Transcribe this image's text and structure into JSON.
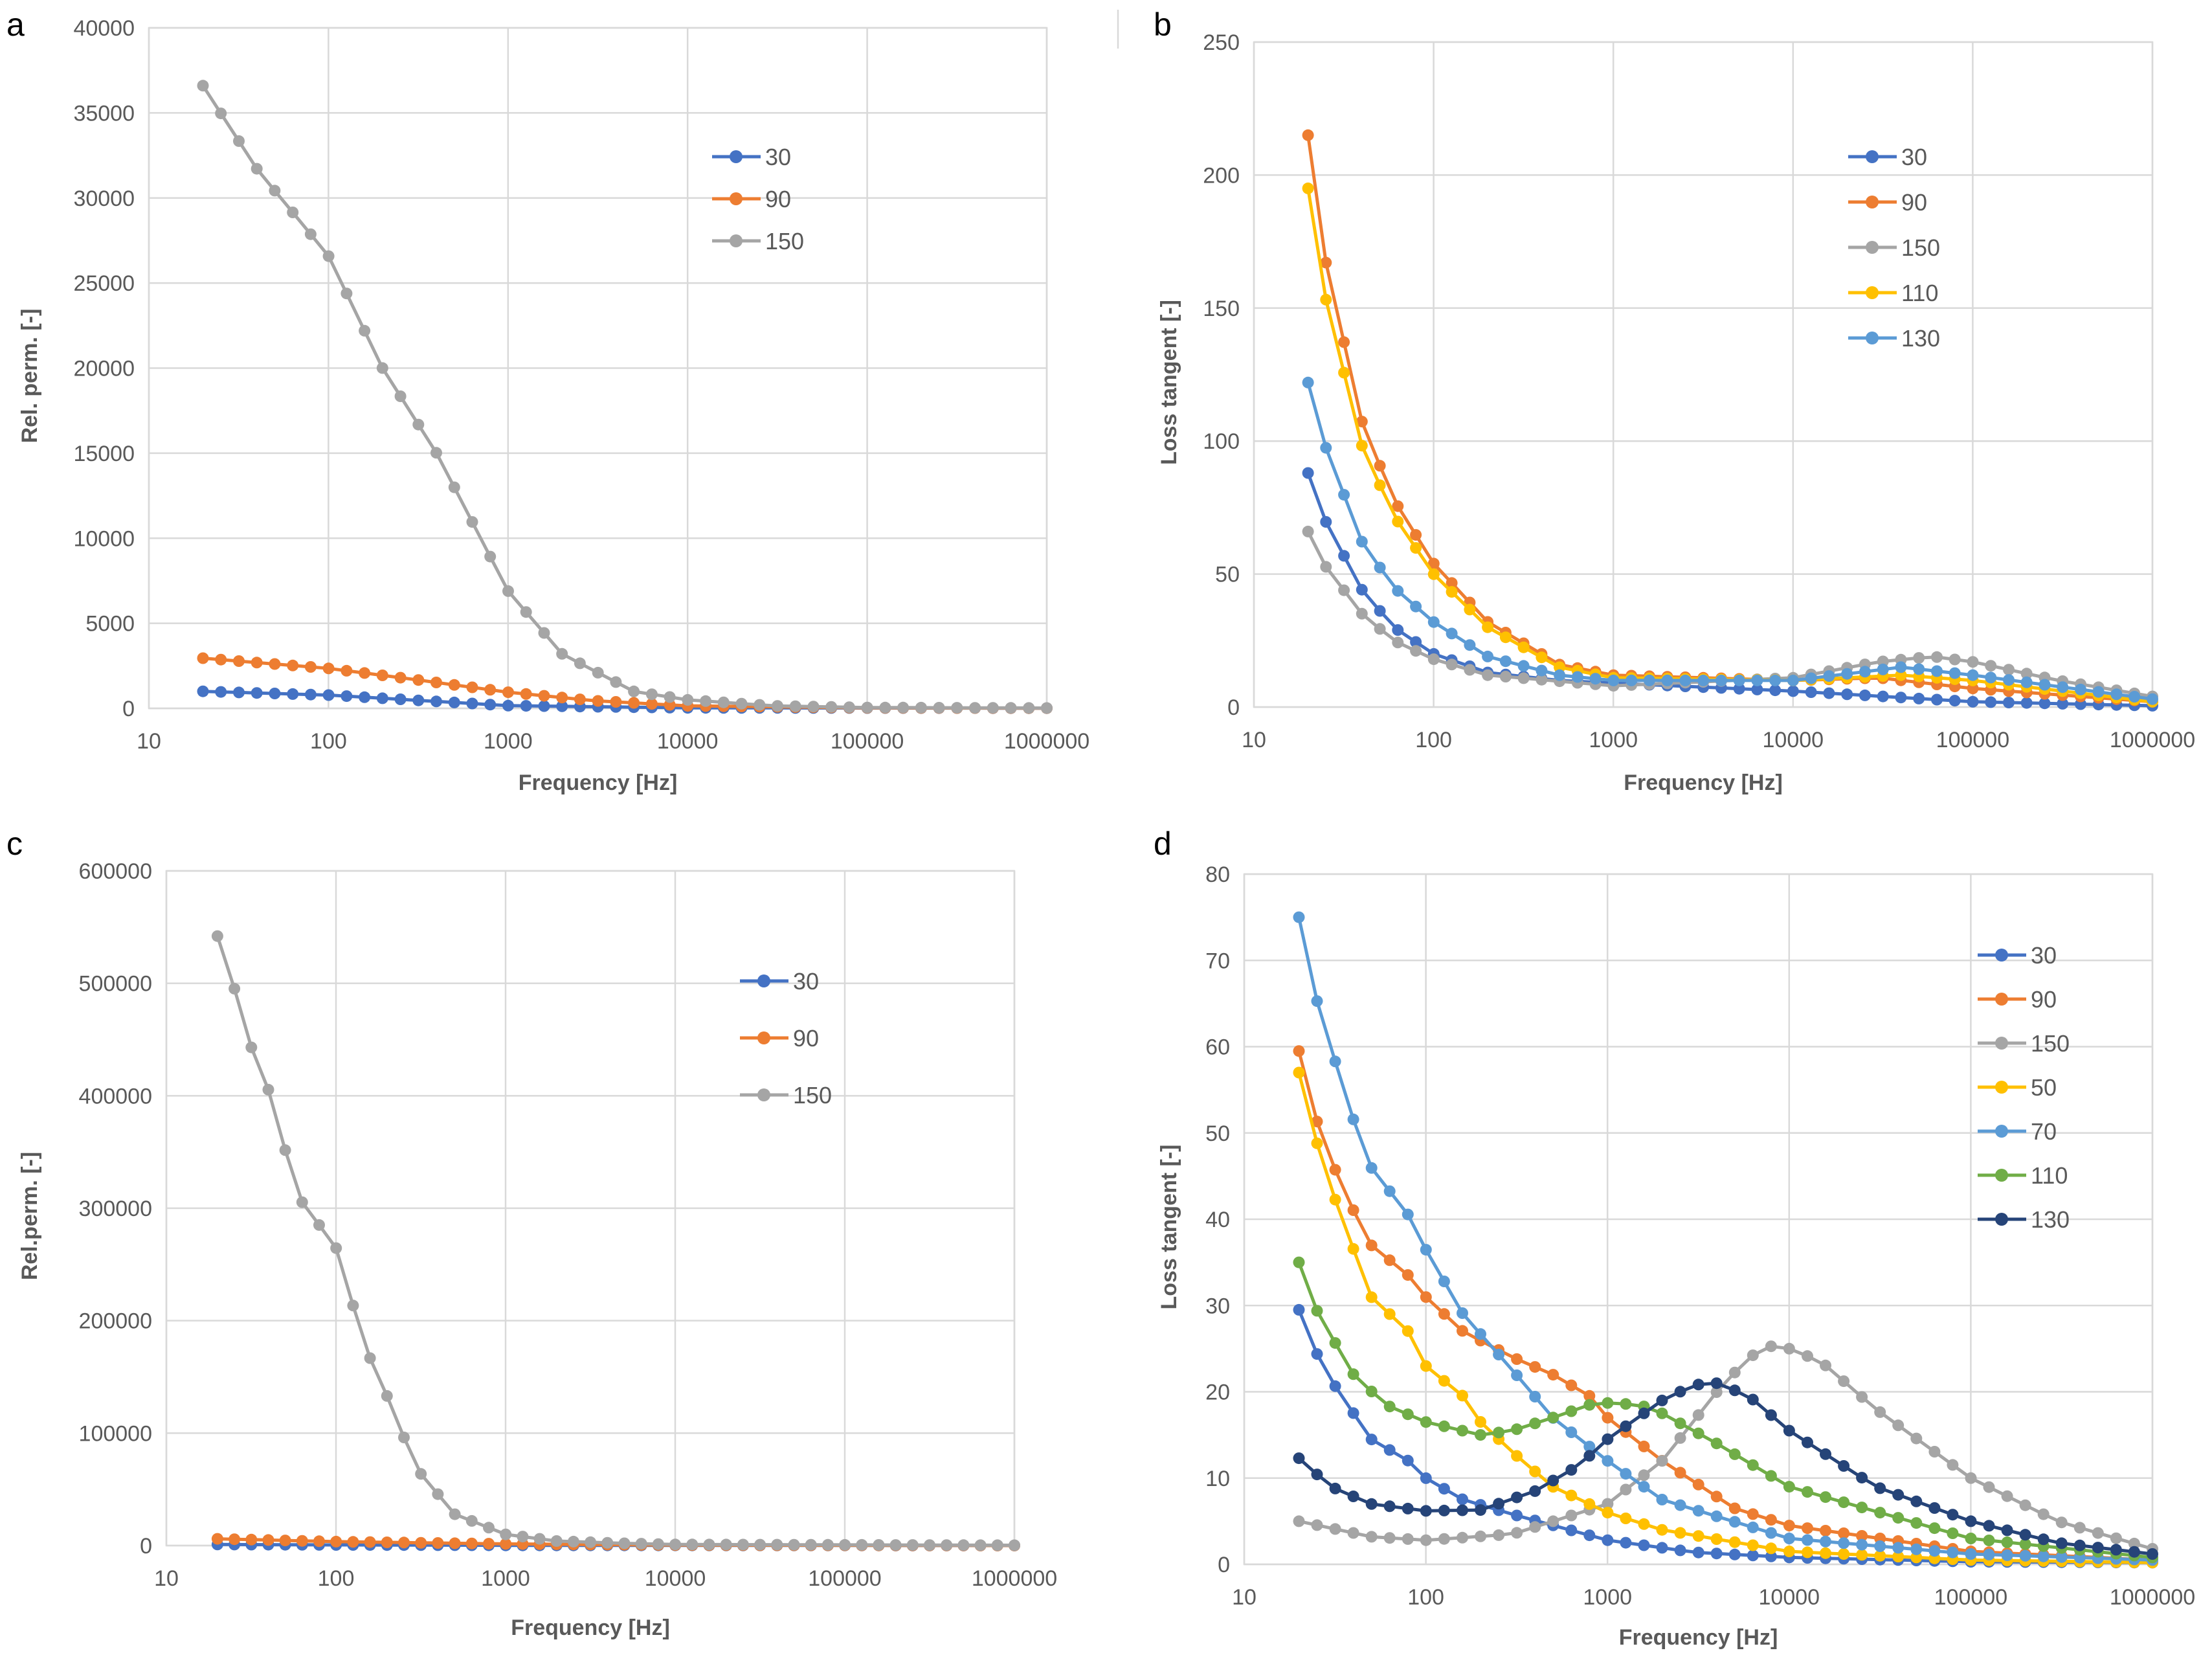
{
  "figure": {
    "panels": [
      "a",
      "b",
      "c",
      "d"
    ]
  },
  "colors": {
    "30": "#4472c4",
    "90": "#ed7d31",
    "150": "#a5a5a5",
    "110": "#ffc000",
    "130": "#5b9bd5",
    "50": "#ffc000",
    "70": "#5b9bd5",
    "110d": "#70ad47",
    "130d": "#264478"
  },
  "chart_data": [
    {
      "panel": "a",
      "type": "line",
      "xscale": "log",
      "xlim": [
        10,
        1000000
      ],
      "ylim": [
        0,
        40000
      ],
      "xticks": [
        "10",
        "100",
        "1000",
        "10000",
        "100000",
        "1000000"
      ],
      "yticks": [
        "0",
        "5000",
        "10000",
        "15000",
        "20000",
        "25000",
        "30000",
        "35000",
        "40000"
      ],
      "xlabel": "Frequency [Hz]",
      "ylabel": "Rel. perm. [-]",
      "legend": "top-right",
      "series": [
        {
          "name": "30",
          "color": "#4472c4",
          "anchors": [
            [
              20,
              1000
            ],
            [
              100,
              780
            ],
            [
              1000,
              160
            ],
            [
              10000,
              30
            ],
            [
              1000000,
              10
            ]
          ]
        },
        {
          "name": "90",
          "color": "#ed7d31",
          "anchors": [
            [
              20,
              2950
            ],
            [
              100,
              2350
            ],
            [
              300,
              1700
            ],
            [
              1000,
              950
            ],
            [
              3000,
              450
            ],
            [
              10000,
              150
            ],
            [
              100000,
              30
            ],
            [
              1000000,
              10
            ]
          ]
        },
        {
          "name": "150",
          "color": "#a5a5a5",
          "anchors": [
            [
              20,
              36600
            ],
            [
              40,
              31700
            ],
            [
              100,
              26600
            ],
            [
              200,
              20000
            ],
            [
              400,
              15000
            ],
            [
              1000,
              6900
            ],
            [
              2000,
              3200
            ],
            [
              5000,
              1000
            ],
            [
              10000,
              500
            ],
            [
              30000,
              150
            ],
            [
              100000,
              50
            ],
            [
              1000000,
              20
            ]
          ]
        }
      ]
    },
    {
      "panel": "b",
      "type": "line",
      "xscale": "log",
      "xlim": [
        10,
        1000000
      ],
      "ylim": [
        0,
        250
      ],
      "xticks": [
        "10",
        "100",
        "1000",
        "10000",
        "100000",
        "1000000"
      ],
      "yticks": [
        "0",
        "50",
        "100",
        "150",
        "200",
        "250"
      ],
      "xlabel": "Frequency [Hz]",
      "ylabel": "Loss tangent [-]",
      "legend": "top-right",
      "series": [
        {
          "name": "30",
          "color": "#4472c4",
          "anchors": [
            [
              20,
              88
            ],
            [
              25,
              70
            ],
            [
              40,
              44
            ],
            [
              60,
              30
            ],
            [
              100,
              20
            ],
            [
              200,
              13
            ],
            [
              500,
              10
            ],
            [
              1000,
              9
            ],
            [
              10000,
              6
            ],
            [
              100000,
              2
            ],
            [
              1000000,
              0.5
            ]
          ]
        },
        {
          "name": "90",
          "color": "#ed7d31",
          "anchors": [
            [
              20,
              215
            ],
            [
              25,
              168
            ],
            [
              40,
              107
            ],
            [
              60,
              78
            ],
            [
              100,
              54
            ],
            [
              200,
              32
            ],
            [
              500,
              16
            ],
            [
              1000,
              12
            ],
            [
              10000,
              10
            ],
            [
              30000,
              11
            ],
            [
              100000,
              7
            ],
            [
              1000000,
              2
            ]
          ]
        },
        {
          "name": "150",
          "color": "#a5a5a5",
          "anchors": [
            [
              20,
              66
            ],
            [
              25,
              53
            ],
            [
              40,
              35
            ],
            [
              60,
              25
            ],
            [
              100,
              18
            ],
            [
              200,
              12
            ],
            [
              1000,
              8
            ],
            [
              10000,
              11
            ],
            [
              30000,
              17
            ],
            [
              60000,
              19
            ],
            [
              100000,
              17
            ],
            [
              300000,
              10
            ],
            [
              1000000,
              4
            ]
          ]
        },
        {
          "name": "110",
          "color": "#ffc000",
          "anchors": [
            [
              20,
              195
            ],
            [
              25,
              154
            ],
            [
              40,
              98
            ],
            [
              60,
              72
            ],
            [
              100,
              50
            ],
            [
              200,
              30
            ],
            [
              500,
              15
            ],
            [
              1000,
              11
            ],
            [
              10000,
              10
            ],
            [
              40000,
              12
            ],
            [
              100000,
              10
            ],
            [
              1000000,
              2
            ]
          ]
        },
        {
          "name": "130",
          "color": "#5b9bd5",
          "anchors": [
            [
              20,
              122
            ],
            [
              25,
              98
            ],
            [
              40,
              62
            ],
            [
              60,
              45
            ],
            [
              100,
              32
            ],
            [
              200,
              19
            ],
            [
              500,
              12
            ],
            [
              1000,
              10
            ],
            [
              10000,
              10
            ],
            [
              40000,
              15
            ],
            [
              100000,
              12
            ],
            [
              1000000,
              3
            ]
          ]
        }
      ]
    },
    {
      "panel": "c",
      "type": "line",
      "xscale": "log",
      "xlim": [
        10,
        1000000
      ],
      "ylim": [
        0,
        600000
      ],
      "xticks": [
        "10",
        "100",
        "1000",
        "10000",
        "100000",
        "1000000"
      ],
      "yticks": [
        "0",
        "100000",
        "200000",
        "300000",
        "400000",
        "500000",
        "600000"
      ],
      "xlabel": "Frequency [Hz]",
      "ylabel": "Rel.perm. [-]",
      "legend": "top-right",
      "series": [
        {
          "name": "30",
          "color": "#4472c4",
          "anchors": [
            [
              20,
              1000
            ],
            [
              100,
              600
            ],
            [
              1000,
              200
            ],
            [
              1000000,
              50
            ]
          ]
        },
        {
          "name": "90",
          "color": "#ed7d31",
          "anchors": [
            [
              20,
              6000
            ],
            [
              100,
              3500
            ],
            [
              1000,
              1500
            ],
            [
              10000,
              400
            ],
            [
              1000000,
              50
            ]
          ]
        },
        {
          "name": "150",
          "color": "#a5a5a5",
          "anchors": [
            [
              20,
              542000
            ],
            [
              25,
              497000
            ],
            [
              30,
              452000
            ],
            [
              40,
              405000
            ],
            [
              60,
              310000
            ],
            [
              100,
              265000
            ],
            [
              150,
              175000
            ],
            [
              200,
              133000
            ],
            [
              300,
              68000
            ],
            [
              500,
              28000
            ],
            [
              1000,
              10000
            ],
            [
              2000,
              4000
            ],
            [
              5000,
              2000
            ],
            [
              10000,
              1000
            ],
            [
              1000000,
              300
            ]
          ]
        }
      ]
    },
    {
      "panel": "d",
      "type": "line",
      "xscale": "log",
      "xlim": [
        10,
        1000000
      ],
      "ylim": [
        0,
        80
      ],
      "xticks": [
        "10",
        "100",
        "1000",
        "10000",
        "100000",
        "1000000"
      ],
      "yticks": [
        "0",
        "10",
        "20",
        "30",
        "40",
        "50",
        "60",
        "70",
        "80"
      ],
      "xlabel": "Frequency [Hz]",
      "ylabel": "Loss tangent [-]",
      "legend": "top-right",
      "series": [
        {
          "name": "30",
          "color": "#4472c4",
          "anchors": [
            [
              20,
              29.5
            ],
            [
              25,
              24.5
            ],
            [
              32,
              20.5
            ],
            [
              40,
              17.5
            ],
            [
              50,
              14.5
            ],
            [
              80,
              12
            ],
            [
              100,
              10
            ],
            [
              160,
              7.5
            ],
            [
              300,
              5.8
            ],
            [
              1000,
              2.8
            ],
            [
              3000,
              1.4
            ],
            [
              10000,
              0.8
            ],
            [
              100000,
              0.3
            ],
            [
              1000000,
              0.2
            ]
          ]
        },
        {
          "name": "90",
          "color": "#ed7d31",
          "anchors": [
            [
              20,
              59.5
            ],
            [
              25,
              51.5
            ],
            [
              32,
              45.5
            ],
            [
              40,
              41
            ],
            [
              50,
              37
            ],
            [
              80,
              33.5
            ],
            [
              100,
              31
            ],
            [
              160,
              27
            ],
            [
              300,
              24
            ],
            [
              500,
              22
            ],
            [
              800,
              19.5
            ],
            [
              1000,
              17
            ],
            [
              2000,
              12
            ],
            [
              5000,
              6.5
            ],
            [
              10000,
              4.5
            ],
            [
              100000,
              1.5
            ],
            [
              1000000,
              0.5
            ]
          ]
        },
        {
          "name": "150",
          "color": "#a5a5a5",
          "anchors": [
            [
              20,
              5
            ],
            [
              50,
              3.2
            ],
            [
              100,
              2.8
            ],
            [
              300,
              3.5
            ],
            [
              1000,
              7
            ],
            [
              2000,
              12
            ],
            [
              4000,
              20
            ],
            [
              6000,
              24
            ],
            [
              8000,
              25.3
            ],
            [
              10000,
              25
            ],
            [
              15000,
              23.5
            ],
            [
              30000,
              18
            ],
            [
              100000,
              10
            ],
            [
              300000,
              5
            ],
            [
              1000000,
              1.8
            ]
          ]
        },
        {
          "name": "50",
          "color": "#ffc000",
          "anchors": [
            [
              20,
              57
            ],
            [
              25,
              49
            ],
            [
              32,
              42
            ],
            [
              40,
              36.5
            ],
            [
              50,
              31
            ],
            [
              80,
              27
            ],
            [
              100,
              23
            ],
            [
              160,
              19.5
            ],
            [
              200,
              16.5
            ],
            [
              300,
              13
            ],
            [
              500,
              9
            ],
            [
              1000,
              6
            ],
            [
              2000,
              4
            ],
            [
              10000,
              1.5
            ],
            [
              100000,
              0.5
            ],
            [
              1000000,
              0.2
            ]
          ]
        },
        {
          "name": "70",
          "color": "#5b9bd5",
          "anchors": [
            [
              20,
              75
            ],
            [
              25,
              65.5
            ],
            [
              32,
              58
            ],
            [
              40,
              51.5
            ],
            [
              50,
              46
            ],
            [
              80,
              40.5
            ],
            [
              100,
              36.5
            ],
            [
              160,
              29
            ],
            [
              300,
              22.5
            ],
            [
              500,
              17
            ],
            [
              1000,
              12
            ],
            [
              2000,
              7.5
            ],
            [
              10000,
              3
            ],
            [
              100000,
              1.2
            ],
            [
              1000000,
              0.5
            ]
          ]
        },
        {
          "name": "110",
          "color": "#70ad47",
          "anchors": [
            [
              20,
              35
            ],
            [
              25,
              29.5
            ],
            [
              32,
              25.5
            ],
            [
              40,
              22
            ],
            [
              60,
              18.5
            ],
            [
              100,
              16.5
            ],
            [
              200,
              15
            ],
            [
              300,
              15.5
            ],
            [
              500,
              17
            ],
            [
              800,
              18.5
            ],
            [
              1000,
              18.7
            ],
            [
              1500,
              18.5
            ],
            [
              2000,
              17.5
            ],
            [
              4000,
              14
            ],
            [
              10000,
              9
            ],
            [
              100000,
              3
            ],
            [
              1000000,
              0.8
            ]
          ]
        },
        {
          "name": "130",
          "color": "#264478",
          "anchors": [
            [
              20,
              12.3
            ],
            [
              30,
              9
            ],
            [
              50,
              7
            ],
            [
              100,
              6.2
            ],
            [
              200,
              6.3
            ],
            [
              400,
              8.5
            ],
            [
              700,
              11.5
            ],
            [
              1000,
              14.5
            ],
            [
              2000,
              19
            ],
            [
              3000,
              20.8
            ],
            [
              4000,
              21
            ],
            [
              6000,
              19.5
            ],
            [
              10000,
              15.5
            ],
            [
              30000,
              9
            ],
            [
              100000,
              5
            ],
            [
              300000,
              2.5
            ],
            [
              1000000,
              1.2
            ]
          ]
        }
      ]
    }
  ]
}
